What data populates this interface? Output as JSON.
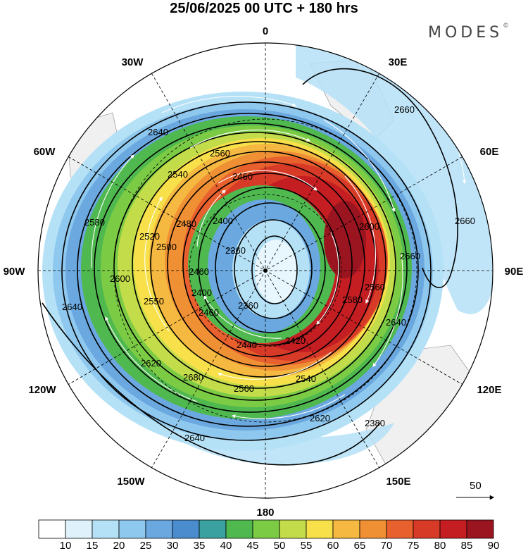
{
  "title": "25/06/2025  00 UTC  + 180 hrs",
  "brand": {
    "name": "MODES",
    "mark": "©"
  },
  "map": {
    "projection": "polar stereographic, south pole centred",
    "longitude_labels": [
      {
        "text": "0",
        "lon": 0
      },
      {
        "text": "30E",
        "lon": 30
      },
      {
        "text": "60E",
        "lon": 60
      },
      {
        "text": "90E",
        "lon": 90
      },
      {
        "text": "120E",
        "lon": 120
      },
      {
        "text": "150E",
        "lon": 150
      },
      {
        "text": "180",
        "lon": 180
      },
      {
        "text": "150W",
        "lon": -150
      },
      {
        "text": "120W",
        "lon": -120
      },
      {
        "text": "90W",
        "lon": -90
      },
      {
        "text": "60W",
        "lon": -60
      },
      {
        "text": "30W",
        "lon": -30
      }
    ],
    "contour_labels": [
      "2640",
      "2560",
      "2540",
      "2460",
      "2400",
      "2520",
      "2480",
      "2500",
      "2460",
      "2400",
      "2360",
      "2600",
      "2580",
      "2620",
      "2640",
      "2680",
      "2550",
      "2560",
      "2540",
      "2440",
      "2420",
      "2460",
      "2620",
      "2640",
      "2660",
      "2660",
      "2640",
      "2600",
      "2580",
      "2560",
      "2660",
      "2360",
      "2380"
    ],
    "vector_reference": {
      "label": "50",
      "value": 50
    }
  },
  "colorbar": {
    "labels": [
      "10",
      "15",
      "20",
      "25",
      "30",
      "35",
      "40",
      "45",
      "50",
      "55",
      "60",
      "65",
      "70",
      "75",
      "80",
      "85",
      "90"
    ],
    "colors": [
      "#ffffff",
      "#dff2fc",
      "#b5e1f7",
      "#8fc8ee",
      "#6aa8df",
      "#4a8ccd",
      "#3aa0a0",
      "#4fb84f",
      "#7ccb45",
      "#c3dd4a",
      "#f7e04a",
      "#f5b840",
      "#f09035",
      "#e8602e",
      "#d83a28",
      "#c41e22",
      "#9b1520"
    ]
  }
}
